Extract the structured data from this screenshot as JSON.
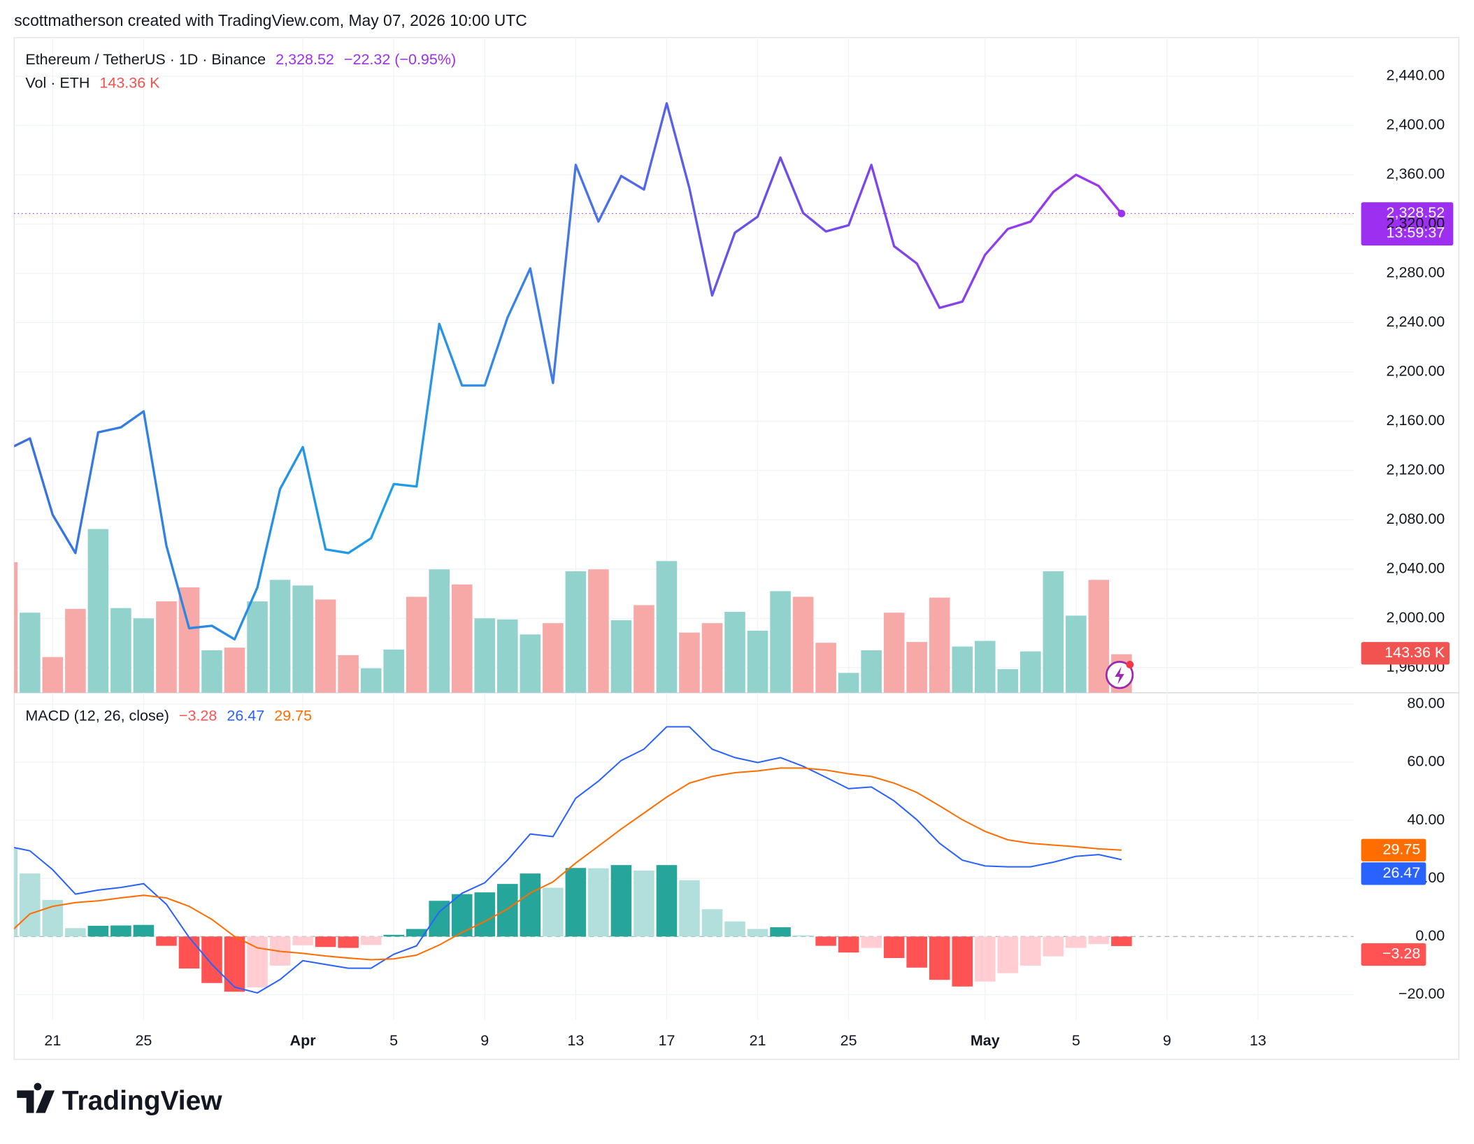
{
  "header": {
    "credit": "scottmatherson created with TradingView.com, May 07, 2026 10:00 UTC",
    "brand": "TradingView"
  },
  "chart_data": [
    {
      "type": "line",
      "title": "Ethereum / TetherUS · 1D · Binance",
      "last_label": "2,328.52",
      "change_label": "−22.32 (−0.95%)",
      "countdown": "13:59:37",
      "color": "#9c2ff0",
      "gradient": [
        "#3b6fe0",
        "#1ea0e6",
        "#6a4fe8",
        "#a035f0"
      ],
      "x": [
        "2026-03-19",
        "2026-03-20",
        "2026-03-21",
        "2026-03-22",
        "2026-03-23",
        "2026-03-24",
        "2026-03-25",
        "2026-03-26",
        "2026-03-27",
        "2026-03-28",
        "2026-03-29",
        "2026-03-30",
        "2026-03-31",
        "2026-04-01",
        "2026-04-02",
        "2026-04-03",
        "2026-04-04",
        "2026-04-05",
        "2026-04-06",
        "2026-04-07",
        "2026-04-08",
        "2026-04-09",
        "2026-04-10",
        "2026-04-11",
        "2026-04-12",
        "2026-04-13",
        "2026-04-14",
        "2026-04-15",
        "2026-04-16",
        "2026-04-17",
        "2026-04-18",
        "2026-04-19",
        "2026-04-20",
        "2026-04-21",
        "2026-04-22",
        "2026-04-23",
        "2026-04-24",
        "2026-04-25",
        "2026-04-26",
        "2026-04-27",
        "2026-04-28",
        "2026-04-29",
        "2026-04-30",
        "2026-05-01",
        "2026-05-02",
        "2026-05-03",
        "2026-05-04",
        "2026-05-05",
        "2026-05-06",
        "2026-05-07"
      ],
      "values": [
        2137,
        2146,
        2084,
        2053,
        2151,
        2155,
        2168,
        2059,
        1992,
        1994,
        1983,
        2025,
        2105,
        2139,
        2056,
        2053,
        2065,
        2109,
        2107,
        2239,
        2189,
        2189,
        2244,
        2284,
        2191,
        2368,
        2322,
        2359,
        2348,
        2418,
        2349,
        2262,
        2313,
        2326,
        2374,
        2329,
        2314,
        2319,
        2368,
        2302,
        2288,
        2252,
        2257,
        2295,
        2316,
        2322,
        2346,
        2360,
        2350.84,
        2328.52
      ],
      "xlim": [
        "2026-03-19",
        "2026-05-17"
      ],
      "xticks": [
        {
          "value": "2026-03-21",
          "label": "21"
        },
        {
          "value": "2026-03-25",
          "label": "25"
        },
        {
          "value": "2026-04-01",
          "label": "Apr"
        },
        {
          "value": "2026-04-05",
          "label": "5"
        },
        {
          "value": "2026-04-09",
          "label": "9"
        },
        {
          "value": "2026-04-13",
          "label": "13"
        },
        {
          "value": "2026-04-17",
          "label": "17"
        },
        {
          "value": "2026-04-21",
          "label": "21"
        },
        {
          "value": "2026-04-25",
          "label": "25"
        },
        {
          "value": "2026-05-01",
          "label": "May"
        },
        {
          "value": "2026-05-05",
          "label": "5"
        },
        {
          "value": "2026-05-09",
          "label": "9"
        },
        {
          "value": "2026-05-13",
          "label": "13"
        }
      ],
      "ylim": [
        1939.6,
        2471.3
      ],
      "yticks": [
        {
          "value": 1960,
          "label": "1,960.00"
        },
        {
          "value": 2000,
          "label": "2,000.00"
        },
        {
          "value": 2040,
          "label": "2,040.00"
        },
        {
          "value": 2080,
          "label": "2,080.00"
        },
        {
          "value": 2120,
          "label": "2,120.00"
        },
        {
          "value": 2160,
          "label": "2,160.00"
        },
        {
          "value": 2200,
          "label": "2,200.00"
        },
        {
          "value": 2240,
          "label": "2,240.00"
        },
        {
          "value": 2280,
          "label": "2,280.00"
        },
        {
          "value": 2320,
          "label": "2,320.00"
        },
        {
          "value": 2360,
          "label": "2,360.00"
        },
        {
          "value": 2400,
          "label": "2,400.00"
        },
        {
          "value": 2440,
          "label": "2,440.00"
        }
      ],
      "grid": true
    },
    {
      "type": "bar",
      "title": "Vol · ETH",
      "last_label": "143.36 K",
      "up_color": "#92d2cc",
      "down_color": "#f7a9a7",
      "badge_color": "#f05350",
      "values": [
        486,
        298,
        133,
        312,
        609,
        315,
        277,
        340,
        392,
        158,
        168,
        340,
        420,
        399,
        347,
        140,
        91,
        161,
        357,
        459,
        403,
        277,
        273,
        217,
        259,
        452,
        459,
        270,
        326,
        490,
        224,
        259,
        301,
        231,
        378,
        357,
        186,
        74,
        158,
        298,
        189,
        354,
        172,
        193,
        88,
        154,
        452,
        287,
        420,
        143.36
      ],
      "ylim": [
        0,
        2437
      ]
    },
    {
      "type": "macd",
      "title": "MACD (12, 26, close)",
      "histogram": {
        "colors": [
          "#26a69a",
          "#b2dfdb",
          "#ff5252",
          "#ffcdd2"
        ],
        "last_label": "−3.28",
        "values": [
          30.6,
          21.7,
          12.6,
          2.9,
          3.7,
          3.8,
          4.0,
          -3.2,
          -11,
          -16,
          -19,
          -17.5,
          -10,
          -3,
          -3.6,
          -3.9,
          -2.9,
          0.6,
          2.6,
          12.3,
          14.6,
          15.2,
          18.1,
          21.7,
          16.8,
          23.6,
          23.5,
          24.6,
          22.7,
          24.6,
          19.4,
          9.4,
          5.2,
          2.6,
          3.2,
          0.4,
          -3.2,
          -5.5,
          -3.9,
          -7.4,
          -10.7,
          -14.9,
          -17.2,
          -15.5,
          -12.6,
          -10,
          -6.8,
          -3.9,
          -2.6,
          -3.28
        ]
      },
      "series": [
        {
          "color": "#2962ff",
          "last_label": "26.47",
          "values": [
            31.1,
            29.5,
            23,
            14.6,
            16,
            16.9,
            18.2,
            11.1,
            -0.3,
            -9.6,
            -17.4,
            -19.4,
            -14.8,
            -8.3,
            -9.6,
            -10.9,
            -10.9,
            -6.1,
            -3.2,
            8.5,
            14.9,
            18.5,
            26.3,
            35.3,
            34.4,
            47.6,
            53.5,
            60.6,
            64.5,
            72.2,
            72.2,
            64.5,
            61.6,
            59.9,
            61.6,
            58.6,
            54.8,
            50.9,
            51.5,
            46.7,
            40.2,
            32.1,
            26.3,
            24.3,
            24,
            24,
            25.6,
            27.6,
            28.2,
            26.47
          ]
        },
        {
          "color": "#ff6d00",
          "last_label": "29.75",
          "values": [
            0.5,
            7.8,
            10.4,
            11.7,
            12.3,
            13.3,
            14.2,
            13.3,
            10.4,
            5.9,
            0,
            -3.9,
            -5.1,
            -5.8,
            -6.7,
            -7.4,
            -8,
            -7.7,
            -6.4,
            -2.9,
            1.4,
            5.2,
            9.5,
            15,
            18.8,
            25.3,
            31.1,
            37,
            42.5,
            48,
            52.8,
            55.1,
            56.4,
            57,
            58,
            58,
            57.3,
            56,
            55.1,
            52.8,
            49.6,
            45,
            40.2,
            36.2,
            33.3,
            32.1,
            31.5,
            30.9,
            30.2,
            29.75
          ]
        }
      ],
      "ylim": [
        -28.7,
        83.9
      ],
      "yticks": [
        {
          "value": -20,
          "label": "−20.00"
        },
        {
          "value": 0,
          "label": "0.00"
        },
        {
          "value": 20,
          "label": "20.00"
        },
        {
          "value": 40,
          "label": "40.00"
        },
        {
          "value": 60,
          "label": "60.00"
        },
        {
          "value": 80,
          "label": "80.00"
        }
      ],
      "grid": true
    }
  ]
}
